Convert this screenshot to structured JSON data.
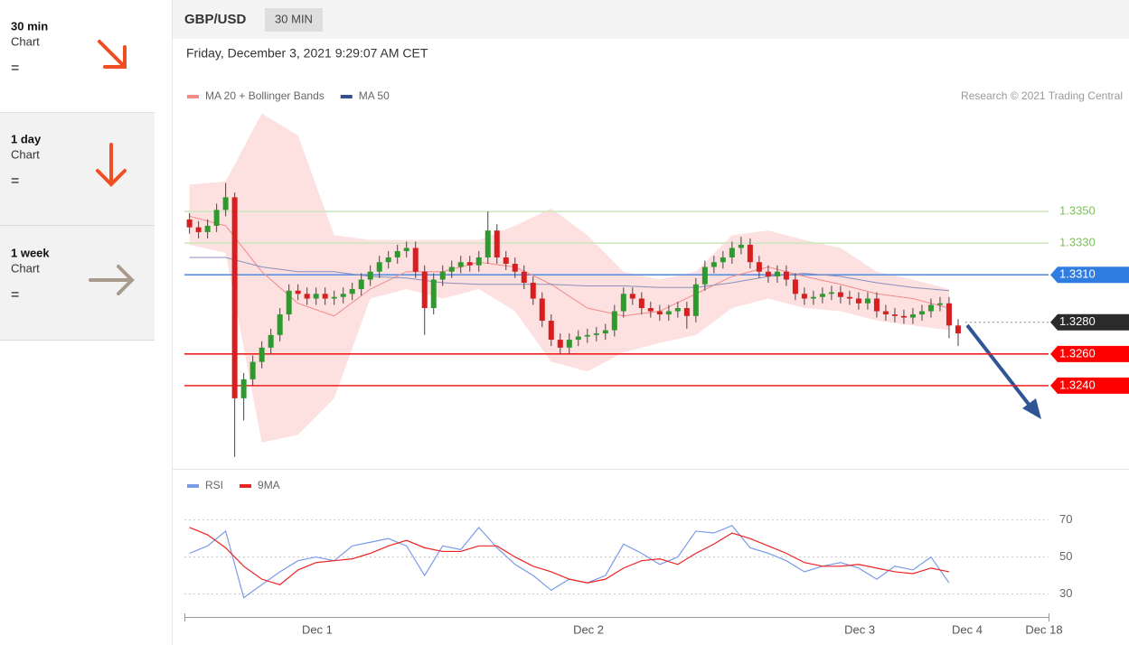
{
  "sidebar": [
    {
      "period": "30 min",
      "label": "Chart",
      "signal": "="
    },
    {
      "period": "1 day",
      "label": "Chart",
      "signal": "="
    },
    {
      "period": "1 week",
      "label": "Chart",
      "signal": "="
    }
  ],
  "header": {
    "symbol": "GBP/USD",
    "interval": "30 MIN",
    "datetime": "Friday, December 3, 2021 9:29:07 AM CET",
    "copyright": "Research © 2021 Trading Central"
  },
  "chart_data": [
    {
      "type": "candlestick",
      "up_color": "#2e9a2e",
      "down_color": "#d81e1e",
      "xlim": [
        -23.5,
        129.4
      ],
      "ylim": [
        1.3188,
        1.3418
      ],
      "x": [
        -22.6,
        -21,
        -19.4,
        -17.8,
        -16.2,
        -14.6,
        -13,
        -11.4,
        -9.8,
        -8.2,
        -6.6,
        -5,
        -3.4,
        -1.8,
        -0.2,
        1.4,
        3,
        4.6,
        6.2,
        7.8,
        9.4,
        11,
        12.6,
        14.2,
        15.8,
        17.4,
        19,
        20.6,
        22.2,
        23.8,
        25.4,
        27,
        28.6,
        30.2,
        31.8,
        33.4,
        35,
        36.6,
        38.2,
        39.8,
        41.4,
        43,
        44.6,
        46.2,
        47.8,
        49.4,
        51,
        52.6,
        54.2,
        55.8,
        57.4,
        59,
        60.6,
        62.2,
        63.8,
        65.4,
        67,
        68.6,
        70.2,
        71.8,
        73.4,
        75,
        76.6,
        78.2,
        79.8,
        81.4,
        83,
        84.6,
        86.2,
        87.8,
        89.4,
        91,
        92.6,
        94.2,
        95.8,
        97.4,
        99,
        100.6,
        102.2,
        103.8,
        105.4,
        107,
        108.6,
        110.2,
        111.8,
        113.4
      ],
      "open": [
        1.3345,
        1.334,
        1.3337,
        1.3341,
        1.3351,
        1.3359,
        1.3232,
        1.3244,
        1.3255,
        1.3264,
        1.3272,
        1.3285,
        1.33,
        1.3298,
        1.3295,
        1.3298,
        1.3295,
        1.3296,
        1.3298,
        1.3301,
        1.3307,
        1.3312,
        1.3318,
        1.3321,
        1.3325,
        1.3327,
        1.3312,
        1.3289,
        1.3307,
        1.3312,
        1.3315,
        1.3318,
        1.3316,
        1.3321,
        1.3338,
        1.3321,
        1.3317,
        1.3312,
        1.3305,
        1.3295,
        1.3281,
        1.3269,
        1.3264,
        1.3269,
        1.3271,
        1.3272,
        1.3273,
        1.3275,
        1.3287,
        1.3298,
        1.3295,
        1.3289,
        1.3287,
        1.3285,
        1.3287,
        1.3289,
        1.3284,
        1.3304,
        1.3315,
        1.3318,
        1.3321,
        1.3327,
        1.3329,
        1.3318,
        1.3312,
        1.3309,
        1.3312,
        1.3307,
        1.3298,
        1.3295,
        1.3296,
        1.3298,
        1.3299,
        1.3296,
        1.3295,
        1.3292,
        1.3295,
        1.3287,
        1.3285,
        1.3284,
        1.3283,
        1.3285,
        1.3287,
        1.3291,
        1.3292,
        1.3278
      ],
      "high": [
        1.3349,
        1.3344,
        1.3345,
        1.3355,
        1.3368,
        1.3362,
        1.3248,
        1.3259,
        1.3268,
        1.3276,
        1.3289,
        1.3304,
        1.3304,
        1.3302,
        1.3302,
        1.3302,
        1.33,
        1.3302,
        1.3305,
        1.3311,
        1.3316,
        1.3322,
        1.3325,
        1.3329,
        1.3331,
        1.3331,
        1.3316,
        1.3311,
        1.3316,
        1.3319,
        1.3322,
        1.3322,
        1.3325,
        1.335,
        1.3342,
        1.3325,
        1.3321,
        1.3316,
        1.3309,
        1.3299,
        1.3285,
        1.3273,
        1.3273,
        1.3275,
        1.3276,
        1.3277,
        1.3279,
        1.3291,
        1.3302,
        1.3302,
        1.3299,
        1.3293,
        1.3291,
        1.3291,
        1.3293,
        1.3293,
        1.3308,
        1.3319,
        1.3322,
        1.3325,
        1.3331,
        1.3334,
        1.3333,
        1.3322,
        1.3316,
        1.3316,
        1.3316,
        1.3311,
        1.3302,
        1.33,
        1.3302,
        1.3303,
        1.3303,
        1.33,
        1.3299,
        1.3299,
        1.3299,
        1.3291,
        1.3289,
        1.3288,
        1.3289,
        1.3291,
        1.3295,
        1.3296,
        1.3296,
        1.3282
      ],
      "low": [
        1.3336,
        1.3333,
        1.3333,
        1.3337,
        1.3347,
        1.3195,
        1.3218,
        1.324,
        1.3251,
        1.326,
        1.3268,
        1.3281,
        1.3294,
        1.3291,
        1.3291,
        1.3291,
        1.3291,
        1.3292,
        1.3294,
        1.3297,
        1.3303,
        1.3308,
        1.3314,
        1.3317,
        1.3321,
        1.3308,
        1.3272,
        1.3285,
        1.3303,
        1.3308,
        1.3311,
        1.3312,
        1.3312,
        1.3317,
        1.3317,
        1.3313,
        1.3308,
        1.3301,
        1.3291,
        1.3277,
        1.3265,
        1.326,
        1.326,
        1.3265,
        1.3267,
        1.3268,
        1.3269,
        1.3271,
        1.3283,
        1.3291,
        1.3285,
        1.3283,
        1.3281,
        1.3281,
        1.3283,
        1.3276,
        1.328,
        1.33,
        1.3311,
        1.3314,
        1.3317,
        1.3323,
        1.3314,
        1.3308,
        1.3305,
        1.3305,
        1.3303,
        1.3294,
        1.3291,
        1.3291,
        1.3292,
        1.3294,
        1.3292,
        1.3291,
        1.3288,
        1.3288,
        1.3283,
        1.3281,
        1.328,
        1.3279,
        1.3279,
        1.3281,
        1.3283,
        1.3287,
        1.327,
        1.3265
      ],
      "close": [
        1.334,
        1.3337,
        1.3341,
        1.3351,
        1.3359,
        1.3232,
        1.3244,
        1.3255,
        1.3264,
        1.3272,
        1.3285,
        1.33,
        1.3298,
        1.3295,
        1.3298,
        1.3295,
        1.3296,
        1.3298,
        1.3301,
        1.3307,
        1.3312,
        1.3318,
        1.3321,
        1.3325,
        1.3327,
        1.3312,
        1.3289,
        1.3307,
        1.3312,
        1.3315,
        1.3318,
        1.3316,
        1.3321,
        1.3338,
        1.3321,
        1.3317,
        1.3312,
        1.3305,
        1.3295,
        1.3281,
        1.3269,
        1.3264,
        1.3269,
        1.3271,
        1.3272,
        1.3273,
        1.3275,
        1.3287,
        1.3298,
        1.3295,
        1.3289,
        1.3287,
        1.3285,
        1.3287,
        1.3289,
        1.3284,
        1.3304,
        1.3315,
        1.3318,
        1.3321,
        1.3327,
        1.3329,
        1.3318,
        1.3312,
        1.3309,
        1.3312,
        1.3307,
        1.3298,
        1.3295,
        1.3296,
        1.3298,
        1.3299,
        1.3296,
        1.3295,
        1.3292,
        1.3295,
        1.3287,
        1.3285,
        1.3284,
        1.3283,
        1.3285,
        1.3287,
        1.3291,
        1.3292,
        1.3278,
        1.3273
      ],
      "overlays": [
        {
          "name": "MA 20 + Bollinger Bands",
          "color": "#f28a8a",
          "band_color": "#fde0e0",
          "x": [
            -22.6,
            -16.2,
            -9.8,
            -3.4,
            3,
            9.4,
            15.8,
            22.2,
            28.6,
            35,
            41.4,
            47.8,
            54.2,
            60.6,
            67,
            73.4,
            79.8,
            86.2,
            92.6,
            99,
            105.4,
            111.8
          ],
          "values": [
            1.3347,
            1.3341,
            1.3312,
            1.3292,
            1.3284,
            1.3301,
            1.3312,
            1.3312,
            1.3318,
            1.3315,
            1.3304,
            1.3289,
            1.3284,
            1.3287,
            1.3298,
            1.3309,
            1.3315,
            1.3309,
            1.3304,
            1.3298,
            1.3295,
            1.3289
          ],
          "upper": [
            1.3367,
            1.3369,
            1.3412,
            1.3398,
            1.3335,
            1.3332,
            1.3332,
            1.3332,
            1.3332,
            1.3341,
            1.3352,
            1.3335,
            1.3312,
            1.3307,
            1.3312,
            1.3335,
            1.3338,
            1.3332,
            1.3327,
            1.3312,
            1.3307,
            1.3301
          ],
          "lower": [
            1.3329,
            1.3324,
            1.3204,
            1.3209,
            1.3232,
            1.3295,
            1.3301,
            1.3295,
            1.3301,
            1.3287,
            1.3255,
            1.3249,
            1.3261,
            1.3267,
            1.3272,
            1.3289,
            1.3295,
            1.3289,
            1.3287,
            1.3281,
            1.3278,
            1.3275
          ]
        },
        {
          "name": "MA 50",
          "color": "#2f4f8f",
          "line_color": "#8a8fb8",
          "x": [
            -22.6,
            -16.2,
            -9.8,
            -3.4,
            3,
            9.4,
            15.8,
            22.2,
            28.6,
            35,
            41.4,
            47.8,
            54.2,
            60.6,
            67,
            73.4,
            79.8,
            86.2,
            92.6,
            99,
            105.4,
            111.8
          ],
          "values": [
            1.3321,
            1.3321,
            1.3315,
            1.3312,
            1.3312,
            1.3309,
            1.3308,
            1.3305,
            1.3304,
            1.3304,
            1.3304,
            1.3303,
            1.3303,
            1.3302,
            1.3302,
            1.3305,
            1.3309,
            1.3311,
            1.3309,
            1.3305,
            1.3302,
            1.33
          ]
        }
      ],
      "levels": [
        {
          "value": 1.335,
          "label": "1.3350",
          "color": "#7cc25a",
          "line_color": "#cfe6c0",
          "box": false,
          "style": "solid"
        },
        {
          "value": 1.333,
          "label": "1.3330",
          "color": "#7cc25a",
          "line_color": "#cfe6c0",
          "box": false,
          "style": "solid"
        },
        {
          "value": 1.331,
          "label": "1.3310",
          "color": "#2f7de1",
          "line_color": "#5b8fe0",
          "box": true,
          "style": "solid"
        },
        {
          "value": 1.328,
          "label": "1.3280",
          "color": "#2b2b2b",
          "line_color": "#888888",
          "box": true,
          "style": "dotted"
        },
        {
          "value": 1.326,
          "label": "1.3260",
          "color": "#ff0000",
          "line_color": "#ee2222",
          "box": true,
          "style": "solid"
        },
        {
          "value": 1.324,
          "label": "1.3240",
          "color": "#ff0000",
          "line_color": "#ee2222",
          "box": true,
          "style": "solid"
        }
      ]
    },
    {
      "type": "line",
      "xlim": [
        -23.5,
        129.4
      ],
      "ylim": [
        19,
        85
      ],
      "yticks": [
        30,
        50,
        70
      ],
      "grid": true,
      "xticks": [
        {
          "value": 0,
          "label": "Dec 1"
        },
        {
          "value": 48,
          "label": "Dec 2"
        },
        {
          "value": 96,
          "label": "Dec 3"
        },
        {
          "value": 115,
          "label": "Dec 4"
        },
        {
          "value": 128.6,
          "label": "Dec 18"
        }
      ],
      "series": [
        {
          "name": "RSI",
          "color": "#7b9ae8",
          "x": [
            -22.6,
            -19.4,
            -16.2,
            -13,
            -9.8,
            -6.6,
            -3.4,
            -0.2,
            3,
            6.2,
            9.4,
            12.6,
            15.8,
            19,
            22.2,
            25.4,
            28.6,
            31.8,
            35,
            38.2,
            41.4,
            44.6,
            47.8,
            51,
            54.2,
            57.4,
            60.6,
            63.8,
            67,
            70.2,
            73.4,
            76.6,
            79.8,
            83,
            86.2,
            89.4,
            92.6,
            95.8,
            99,
            102.2,
            105.4,
            108.6,
            111.8
          ],
          "values": [
            52,
            56,
            64,
            28,
            35,
            42,
            48,
            50,
            48,
            56,
            58,
            60,
            56,
            40,
            56,
            54,
            66,
            55,
            46,
            40,
            32,
            38,
            36,
            40,
            57,
            52,
            46,
            50,
            64,
            63,
            67,
            55,
            52,
            48,
            42,
            45,
            47,
            44,
            38,
            45,
            43,
            50,
            36
          ]
        },
        {
          "name": "9MA",
          "color": "#ee2222",
          "x": [
            -22.6,
            -19.4,
            -16.2,
            -13,
            -9.8,
            -6.6,
            -3.4,
            -0.2,
            3,
            6.2,
            9.4,
            12.6,
            15.8,
            19,
            22.2,
            25.4,
            28.6,
            31.8,
            35,
            38.2,
            41.4,
            44.6,
            47.8,
            51,
            54.2,
            57.4,
            60.6,
            63.8,
            67,
            70.2,
            73.4,
            76.6,
            79.8,
            83,
            86.2,
            89.4,
            92.6,
            95.8,
            99,
            102.2,
            105.4,
            108.6,
            111.8
          ],
          "values": [
            66,
            62,
            55,
            45,
            38,
            35,
            43,
            47,
            48,
            49,
            52,
            56,
            59,
            55,
            53,
            53,
            56,
            56,
            50,
            45,
            42,
            38,
            36,
            38,
            44,
            48,
            49,
            46,
            52,
            57,
            63,
            60,
            56,
            52,
            47,
            45,
            45,
            46,
            44,
            42,
            41,
            44,
            42
          ]
        }
      ]
    }
  ]
}
